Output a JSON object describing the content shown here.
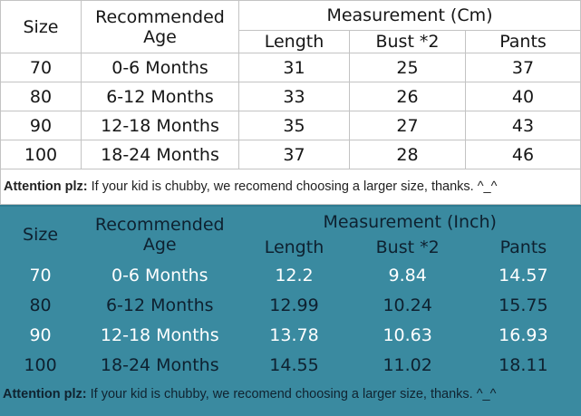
{
  "colors": {
    "teal_background": "#3a8aa0",
    "teal_top_edge": "#2f7b91",
    "table_border": "#c3c3c3",
    "light_row_text": "#ffffff",
    "dark_row_text": "#0e2130"
  },
  "cm": {
    "title": "Measurement (Cm)",
    "size_header": "Size",
    "age_header": "Recommended Age",
    "sub_columns": [
      "Length",
      "Bust *2",
      "Pants"
    ],
    "rows": [
      {
        "size": "70",
        "age": "0-6 Months",
        "length": "31",
        "bust": "25",
        "pants": "37"
      },
      {
        "size": "80",
        "age": "6-12 Months",
        "length": "33",
        "bust": "26",
        "pants": "40"
      },
      {
        "size": "90",
        "age": "12-18 Months",
        "length": "35",
        "bust": "27",
        "pants": "43"
      },
      {
        "size": "100",
        "age": "18-24 Months",
        "length": "37",
        "bust": "28",
        "pants": "46"
      }
    ],
    "note_label": "Attention plz:",
    "note_text": " If your kid is chubby, we recomend choosing a larger size, thanks. ^_^"
  },
  "inch": {
    "title": "Measurement (Inch)",
    "size_header": "Size",
    "age_header": "Recommended Age",
    "sub_columns": [
      "Length",
      "Bust *2",
      "Pants"
    ],
    "rows": [
      {
        "size": "70",
        "age": "0-6 Months",
        "length": "12.2",
        "bust": "9.84",
        "pants": "14.57"
      },
      {
        "size": "80",
        "age": "6-12 Months",
        "length": "12.99",
        "bust": "10.24",
        "pants": "15.75"
      },
      {
        "size": "90",
        "age": "12-18 Months",
        "length": "13.78",
        "bust": "10.63",
        "pants": "16.93"
      },
      {
        "size": "100",
        "age": "18-24 Months",
        "length": "14.55",
        "bust": "11.02",
        "pants": "18.11"
      }
    ],
    "note_label": "Attention plz:",
    "note_text": " If your kid is chubby, we recomend choosing a larger size, thanks. ^_^"
  },
  "chart_data": [
    {
      "type": "table",
      "title": "Measurement (Cm)",
      "columns": [
        "Size",
        "Recommended Age",
        "Length",
        "Bust *2",
        "Pants"
      ],
      "rows": [
        [
          "70",
          "0-6 Months",
          31,
          25,
          37
        ],
        [
          "80",
          "6-12 Months",
          33,
          26,
          40
        ],
        [
          "90",
          "12-18 Months",
          35,
          27,
          43
        ],
        [
          "100",
          "18-24 Months",
          37,
          28,
          46
        ]
      ],
      "note": "Attention plz: If your kid is chubby, we recomend choosing a larger size, thanks. ^_^"
    },
    {
      "type": "table",
      "title": "Measurement (Inch)",
      "columns": [
        "Size",
        "Recommended Age",
        "Length",
        "Bust *2",
        "Pants"
      ],
      "rows": [
        [
          "70",
          "0-6 Months",
          12.2,
          9.84,
          14.57
        ],
        [
          "80",
          "6-12 Months",
          12.99,
          10.24,
          15.75
        ],
        [
          "90",
          "12-18 Months",
          13.78,
          10.63,
          16.93
        ],
        [
          "100",
          "18-24 Months",
          14.55,
          11.02,
          18.11
        ]
      ],
      "note": "Attention plz: If your kid is chubby, we recomend choosing a larger size, thanks. ^_^"
    }
  ]
}
